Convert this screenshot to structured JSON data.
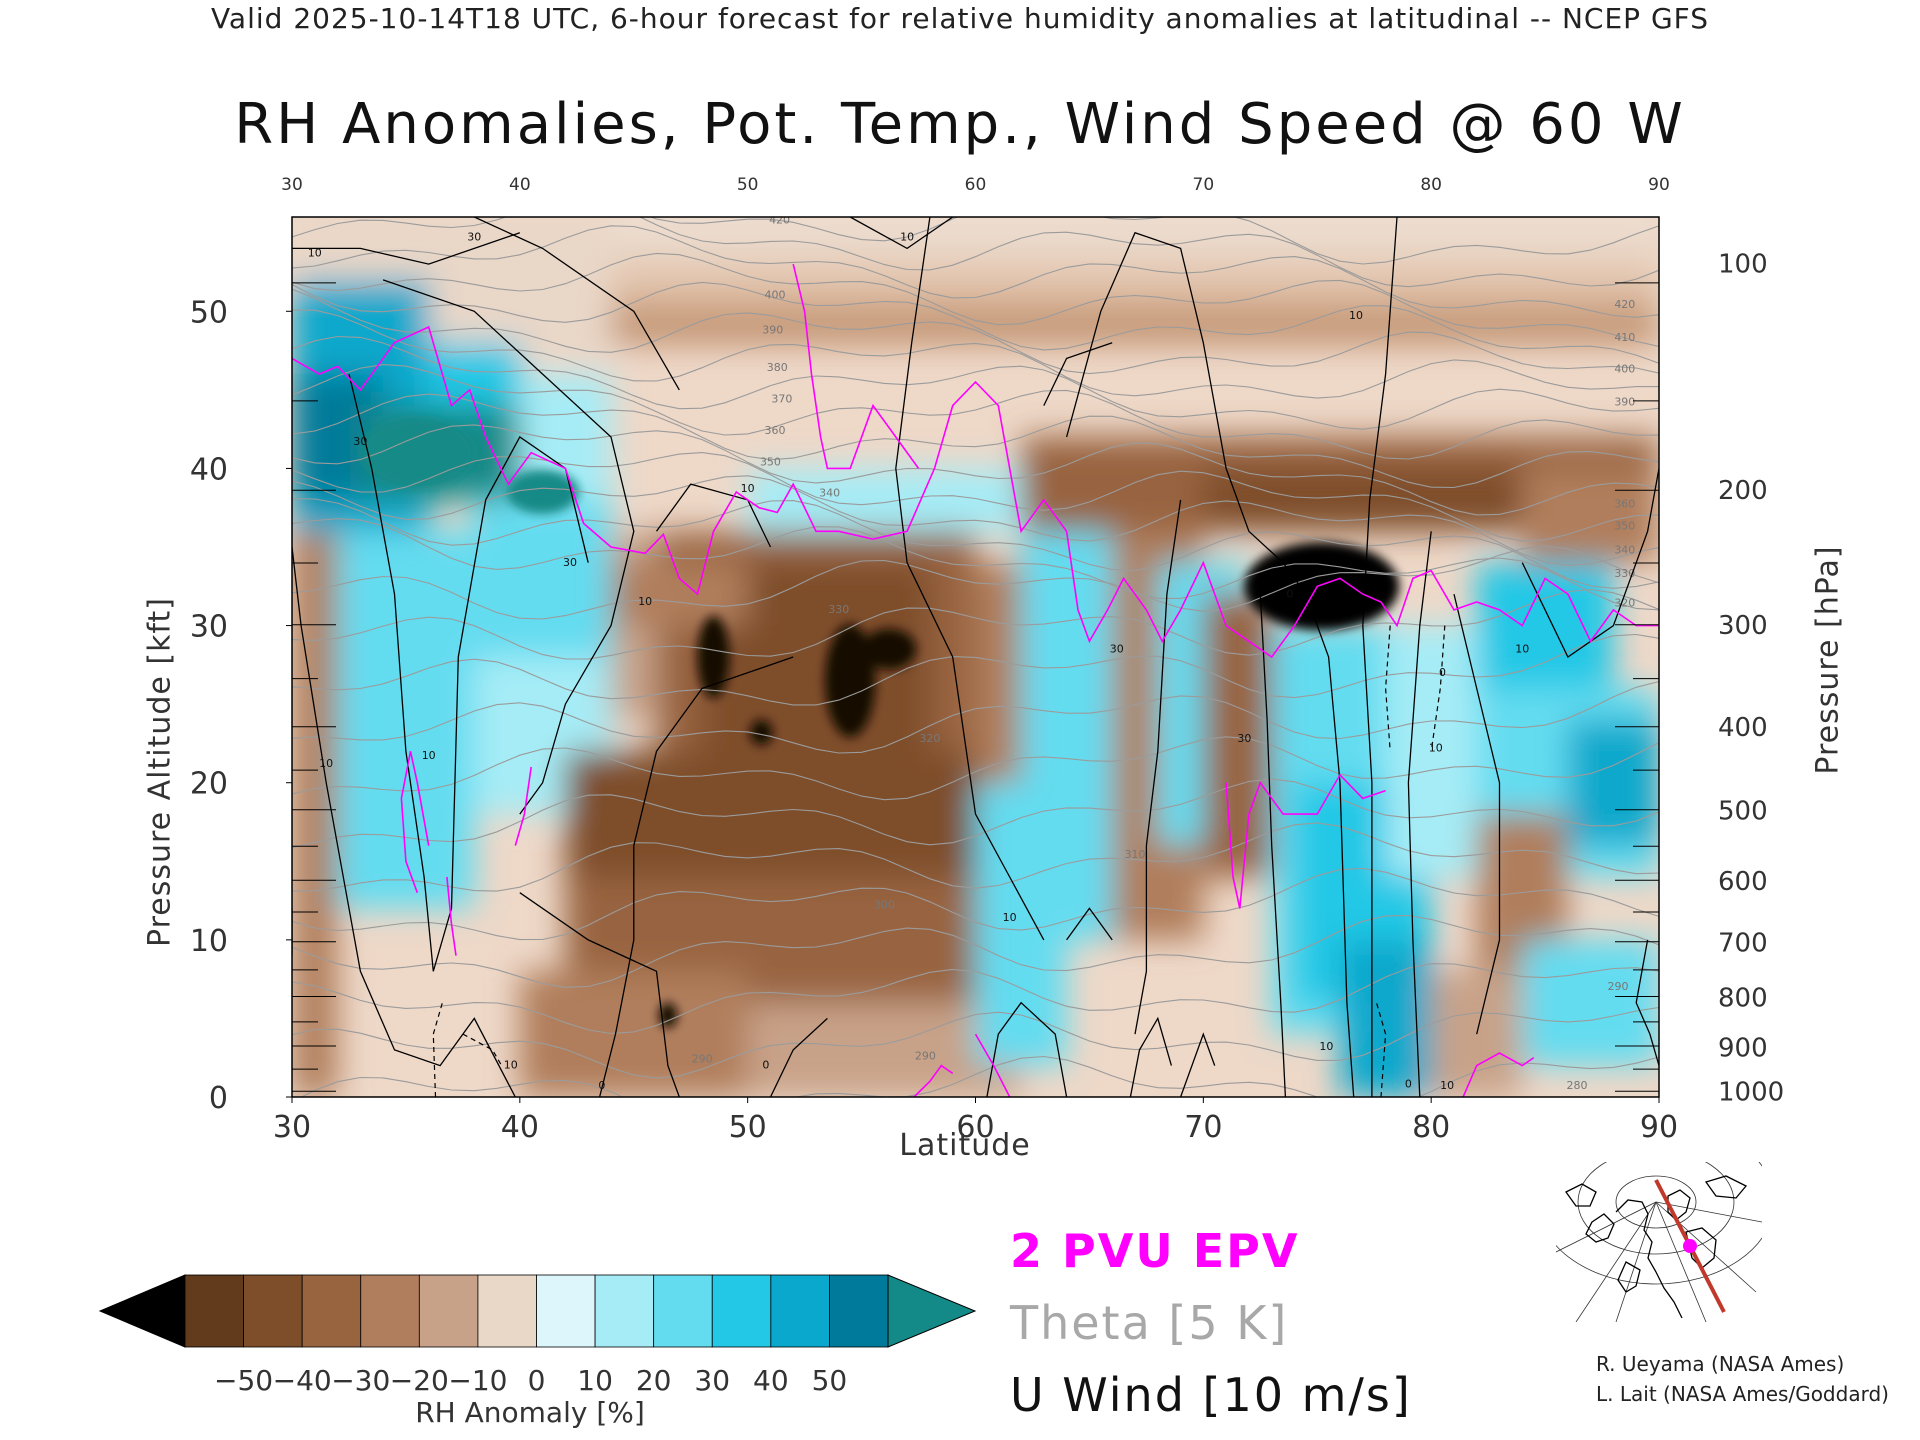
{
  "header": {
    "valid_line": "Valid 2025-10-14T18 UTC, 6-hour forecast for relative humidity anomalies at latitudinal -- NCEP GFS",
    "title": "RH Anomalies, Pot. Temp., Wind Speed @ 60 W"
  },
  "axes": {
    "x_title": "Latitude",
    "y_title": "Pressure Altitude [kft]",
    "y2_title": "Pressure [hPa]"
  },
  "legend": {
    "epv": "2 PVU EPV",
    "theta": "Theta [5 K]",
    "uwind": "U Wind [10 m/s]",
    "colors": {
      "epv": "#ff00ff",
      "theta": "#a8a8a8",
      "uwind": "#111111"
    }
  },
  "colorbar": {
    "label": "RH Anomaly [%]",
    "ticks": [
      "−50",
      "−40",
      "−30",
      "−20",
      "−10",
      "0",
      "10",
      "20",
      "30",
      "40",
      "50"
    ],
    "colors": [
      "#623a1c",
      "#7e4d2a",
      "#986440",
      "#b07e5c",
      "#c8a288",
      "#e9d7c8",
      "#ddf6fb",
      "#a6ecf6",
      "#64dcf0",
      "#22c8e6",
      "#0aa8cc",
      "#007a9a"
    ],
    "under_color": "#000000",
    "over_color": "#138a87"
  },
  "credits": {
    "line1": "R. Ueyama (NASA Ames)",
    "line2": "L. Lait (NASA Ames/Goddard)"
  },
  "inset_map": {
    "cross_section_color": "#c0392b",
    "marker_color": "#ff00ff"
  },
  "chart_data": {
    "type": "heatmap",
    "title": "RH Anomalies, Pot. Temp., Wind Speed @ 60 W",
    "xlabel": "Latitude",
    "ylabel": "Pressure Altitude [kft]",
    "y2label": "Pressure [hPa]",
    "xlim": [
      30,
      90
    ],
    "ylim": [
      0,
      56
    ],
    "x_ticks": [
      30,
      40,
      50,
      60,
      70,
      80,
      90
    ],
    "y_ticks": [
      0,
      10,
      20,
      30,
      40,
      50
    ],
    "pressure_ticks": [
      {
        "hPa": 100,
        "kft": 53.1
      },
      {
        "hPa": 200,
        "kft": 38.7
      },
      {
        "hPa": 300,
        "kft": 30.1
      },
      {
        "hPa": 400,
        "kft": 23.6
      },
      {
        "hPa": 500,
        "kft": 18.3
      },
      {
        "hPa": 600,
        "kft": 13.8
      },
      {
        "hPa": 700,
        "kft": 9.9
      },
      {
        "hPa": 800,
        "kft": 6.4
      },
      {
        "hPa": 900,
        "kft": 3.2
      },
      {
        "hPa": 1000,
        "kft": 0.4
      }
    ],
    "rh_anomaly_range": [
      -50,
      50
    ],
    "grid": false,
    "theta_contours": {
      "interval_K": 5,
      "labeled_values": [
        280,
        290,
        300,
        310,
        320,
        330,
        340,
        350,
        360,
        370,
        380,
        390,
        400,
        410,
        420
      ]
    },
    "u_wind_contours": {
      "interval_ms": 10,
      "labeled_values": [
        -10,
        0,
        10,
        30
      ]
    },
    "epv_contour_pvu": 2
  }
}
